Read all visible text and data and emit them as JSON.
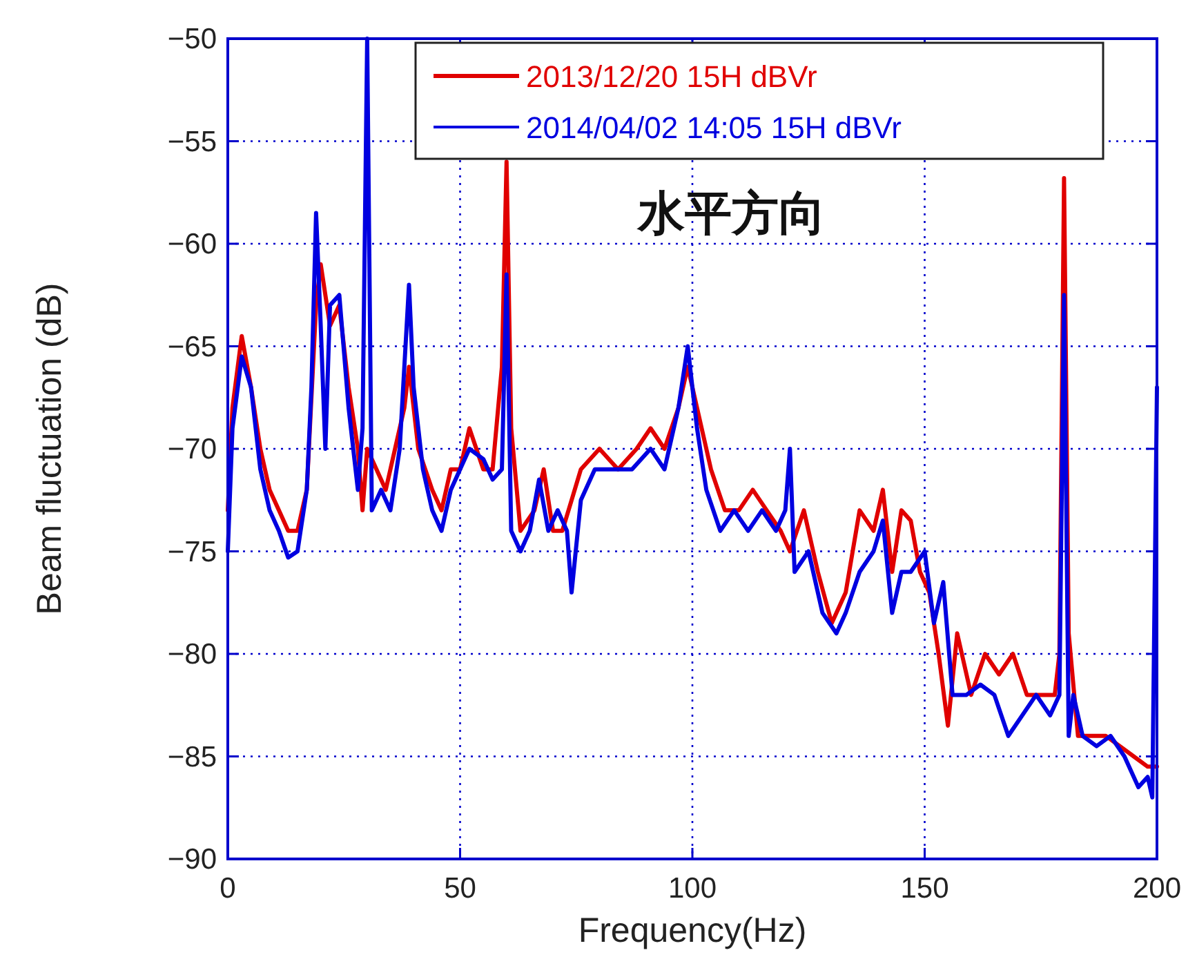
{
  "chart_data": {
    "type": "line",
    "xlabel": "Frequency(Hz)",
    "ylabel": "Beam fluctuation (dB)",
    "annotations": [
      "水平方向"
    ],
    "xlim": [
      0,
      200
    ],
    "ylim": [
      -90,
      -50
    ],
    "xticks": [
      0,
      50,
      100,
      150,
      200
    ],
    "yticks": [
      -90,
      -85,
      -80,
      -75,
      -70,
      -65,
      -60,
      -55,
      -50
    ],
    "grid": true,
    "legend": "top right",
    "marker": "none",
    "line_style": "solid",
    "series": [
      {
        "name": "2013/12/20 15H dBVr",
        "color": "#e00000",
        "x": [
          0,
          1,
          3,
          5,
          7,
          9,
          11,
          13,
          15,
          17,
          19,
          20,
          22,
          24,
          26,
          28,
          29,
          30,
          32,
          34,
          36,
          38,
          39,
          41,
          44,
          46,
          48,
          50,
          52,
          55,
          57,
          59,
          60,
          61,
          63,
          66,
          68,
          70,
          72,
          74,
          76,
          80,
          84,
          88,
          91,
          94,
          97,
          99,
          101,
          104,
          107,
          110,
          113,
          116,
          119,
          121,
          124,
          127,
          130,
          133,
          136,
          139,
          141,
          143,
          145,
          147,
          149,
          151,
          153,
          155,
          157,
          160,
          163,
          166,
          169,
          172,
          175,
          178,
          179,
          180,
          181,
          183,
          186,
          189,
          192,
          195,
          198,
          200
        ],
        "values": [
          -73,
          -68,
          -64.5,
          -67,
          -70,
          -72,
          -73,
          -74,
          -74,
          -72,
          -63,
          -61,
          -64,
          -63,
          -67,
          -70,
          -73,
          -70,
          -71,
          -72,
          -70,
          -68,
          -66,
          -70,
          -72,
          -73,
          -71,
          -71,
          -69,
          -71,
          -71,
          -66,
          -56,
          -69,
          -74,
          -73,
          -71,
          -74,
          -74,
          -72.5,
          -71,
          -70,
          -71,
          -70,
          -69,
          -70,
          -68,
          -66,
          -68,
          -71,
          -73,
          -73,
          -72,
          -73,
          -74,
          -75,
          -73,
          -76,
          -78.5,
          -77,
          -73,
          -74,
          -72,
          -76,
          -73,
          -73.5,
          -76,
          -77,
          -80,
          -83.5,
          -79,
          -82,
          -80,
          -81,
          -80,
          -82,
          -82,
          -82,
          -80,
          -56.8,
          -79,
          -84,
          -84,
          -84,
          -84.5,
          -85,
          -85.5,
          -85.5
        ]
      },
      {
        "name": "2014/04/02 14:05 15H dBVr",
        "color": "#0000e0",
        "x": [
          0,
          1,
          3,
          5,
          7,
          9,
          11,
          13,
          15,
          17,
          18,
          19,
          20,
          21,
          22,
          24,
          26,
          28,
          29,
          30,
          31,
          33,
          35,
          37,
          39,
          40,
          42,
          44,
          46,
          48,
          50,
          52,
          55,
          57,
          59,
          60,
          61,
          63,
          65,
          67,
          69,
          71,
          73,
          74,
          76,
          79,
          83,
          87,
          91,
          94,
          97,
          99,
          101,
          103,
          106,
          109,
          112,
          115,
          118,
          120,
          121,
          122,
          125,
          128,
          131,
          133,
          136,
          139,
          141,
          143,
          145,
          147,
          150,
          152,
          154,
          156,
          159,
          162,
          165,
          168,
          171,
          174,
          177,
          179,
          180,
          181,
          182,
          184,
          187,
          190,
          193,
          196,
          198,
          199,
          200
        ],
        "values": [
          -75,
          -69,
          -65.5,
          -67,
          -71,
          -73,
          -74,
          -75.3,
          -75,
          -72,
          -67,
          -58.5,
          -64,
          -70,
          -63,
          -62.5,
          -68,
          -72,
          -69,
          -50,
          -73,
          -72,
          -73,
          -70,
          -62,
          -67,
          -71,
          -73,
          -74,
          -72,
          -71,
          -70,
          -70.5,
          -71.5,
          -71,
          -61.5,
          -74,
          -75,
          -74,
          -71.5,
          -74,
          -73,
          -74,
          -77,
          -72.5,
          -71,
          -71,
          -71,
          -70,
          -71,
          -68,
          -65,
          -69,
          -72,
          -74,
          -73,
          -74,
          -73,
          -74,
          -73,
          -70,
          -76,
          -75,
          -78,
          -79,
          -78,
          -76,
          -75,
          -73.5,
          -78,
          -76,
          -76,
          -75,
          -78.5,
          -76.5,
          -82,
          -82,
          -81.5,
          -82,
          -84,
          -83,
          -82,
          -83,
          -82,
          -62.5,
          -84,
          -82,
          -84,
          -84.5,
          -84,
          -85,
          -86.5,
          -86,
          -87,
          -67
        ]
      }
    ]
  }
}
